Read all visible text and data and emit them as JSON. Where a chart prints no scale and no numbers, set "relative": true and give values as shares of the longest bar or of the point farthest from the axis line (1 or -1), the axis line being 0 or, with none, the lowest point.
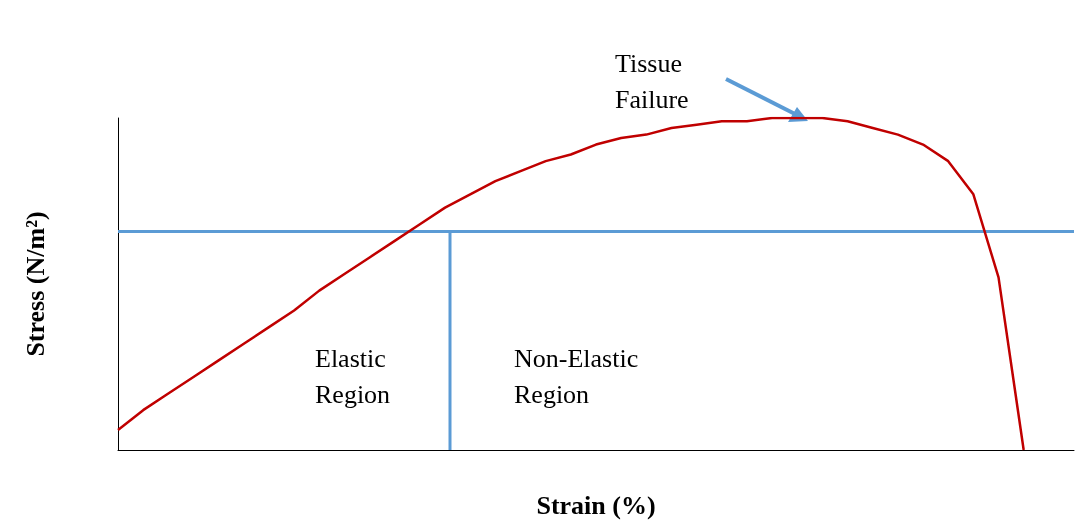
{
  "chart_data": {
    "type": "line",
    "xlabel": "Strain (%)",
    "ylabel": "Stress (N/m²)",
    "annotations": [
      "Tissue\nFailure",
      "Elastic\nRegion",
      "Non-Elastic\nRegion"
    ],
    "categories": [
      null,
      null,
      null,
      null,
      null,
      null,
      null,
      null,
      null,
      null,
      null,
      null,
      null,
      null,
      null,
      null,
      null,
      null,
      null,
      null,
      null,
      null,
      null,
      null,
      null,
      null,
      null,
      null,
      null,
      null,
      null,
      null,
      null,
      null,
      null,
      null,
      null,
      null,
      null
    ],
    "series": [
      {
        "color": "#c00000",
        "values": [
          0.06,
          0.12,
          0.17,
          0.22,
          0.27,
          0.32,
          0.37,
          0.42,
          0.48,
          0.53,
          0.58,
          0.63,
          0.68,
          0.73,
          0.77,
          0.81,
          0.84,
          0.87,
          0.89,
          0.92,
          0.94,
          0.95,
          0.97,
          0.98,
          0.99,
          0.99,
          1,
          1,
          1,
          0.99,
          0.97,
          0.95,
          0.92,
          0.87,
          0.77,
          0.52,
          0,
          null,
          null
        ]
      }
    ],
    "relative": true,
    "tick_labels": false,
    "ref_lines": [
      {
        "axis": "y",
        "value": 0.66,
        "color": "#5b9bd5"
      }
    ]
  }
}
